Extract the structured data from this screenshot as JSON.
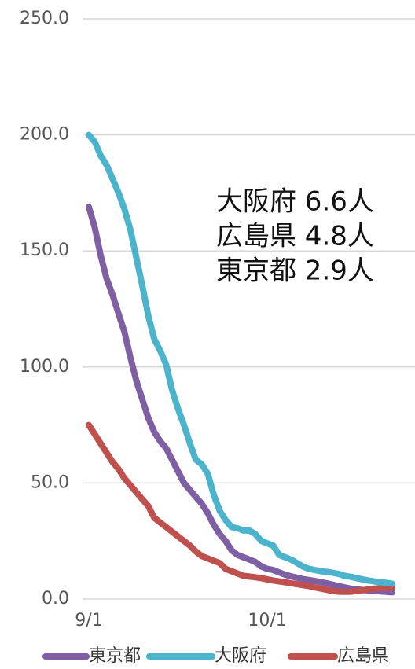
{
  "chart_data": {
    "type": "line",
    "categories": [
      "9/1",
      null,
      null,
      null,
      null,
      null,
      null,
      null,
      null,
      null,
      null,
      null,
      null,
      null,
      null,
      null,
      null,
      null,
      null,
      null,
      null,
      null,
      null,
      null,
      null,
      null,
      null,
      null,
      null,
      null,
      "10/1",
      null,
      null,
      null,
      null,
      null,
      null,
      null,
      null,
      null,
      null,
      null,
      null,
      null,
      null,
      null,
      null,
      null,
      null,
      null,
      null,
      null
    ],
    "series": [
      {
        "name": "東京都",
        "color": "#7e5fa3",
        "values": [
          169,
          160,
          148,
          138,
          131,
          123,
          115,
          104,
          94,
          86,
          78,
          72,
          68,
          65,
          60,
          55,
          50,
          47,
          44,
          41,
          37,
          32,
          28,
          25,
          21,
          19,
          18,
          17,
          16,
          14,
          13,
          12.5,
          11.5,
          10.5,
          9.8,
          9.2,
          8.6,
          8.2,
          7.8,
          7.3,
          6.8,
          6.2,
          5.6,
          5,
          4.5,
          4.2,
          3.9,
          3.7,
          3.5,
          3.3,
          3.1,
          2.9
        ]
      },
      {
        "name": "大阪府",
        "color": "#4bb4cc",
        "values": [
          200,
          197,
          191,
          187,
          181,
          175,
          168,
          159,
          147,
          135,
          122,
          112,
          107,
          101,
          90,
          82,
          75,
          67,
          60,
          58,
          54,
          45,
          38,
          34,
          31,
          30.5,
          29.5,
          29.5,
          28,
          25,
          24,
          23,
          19,
          18,
          17,
          15.5,
          14,
          13,
          12.5,
          12,
          11.7,
          11.3,
          10.8,
          10,
          9.6,
          9,
          8.5,
          8,
          7.6,
          7.3,
          7,
          6.6
        ]
      },
      {
        "name": "広島県",
        "color": "#c0504d",
        "values": [
          75,
          71,
          67,
          63,
          59,
          56,
          52,
          49,
          46,
          43,
          40,
          35,
          33,
          31,
          29,
          27,
          25,
          23,
          20.5,
          18.5,
          17.5,
          16.5,
          15.5,
          13,
          12,
          11,
          10,
          9.7,
          9.4,
          9,
          8.5,
          8,
          7.6,
          7.2,
          6.8,
          6.4,
          6,
          5.6,
          5,
          4.5,
          4,
          3.5,
          3.2,
          3.1,
          3.2,
          3.5,
          3.8,
          4.2,
          4.5,
          4.7,
          4.8,
          4.8
        ]
      }
    ],
    "ylim": [
      0,
      250
    ],
    "yticks": [
      {
        "value": 0,
        "label": "0.0"
      },
      {
        "value": 50,
        "label": "50.0"
      },
      {
        "value": 100,
        "label": "100.0"
      },
      {
        "value": 150,
        "label": "150.0"
      },
      {
        "value": 200,
        "label": "200.0"
      },
      {
        "value": 250,
        "label": "250.0"
      }
    ],
    "grid": true,
    "annotations": [
      "大阪府 6.6人",
      "広島県 4.8人",
      "東京都 2.9人"
    ],
    "legend": "bottom"
  }
}
